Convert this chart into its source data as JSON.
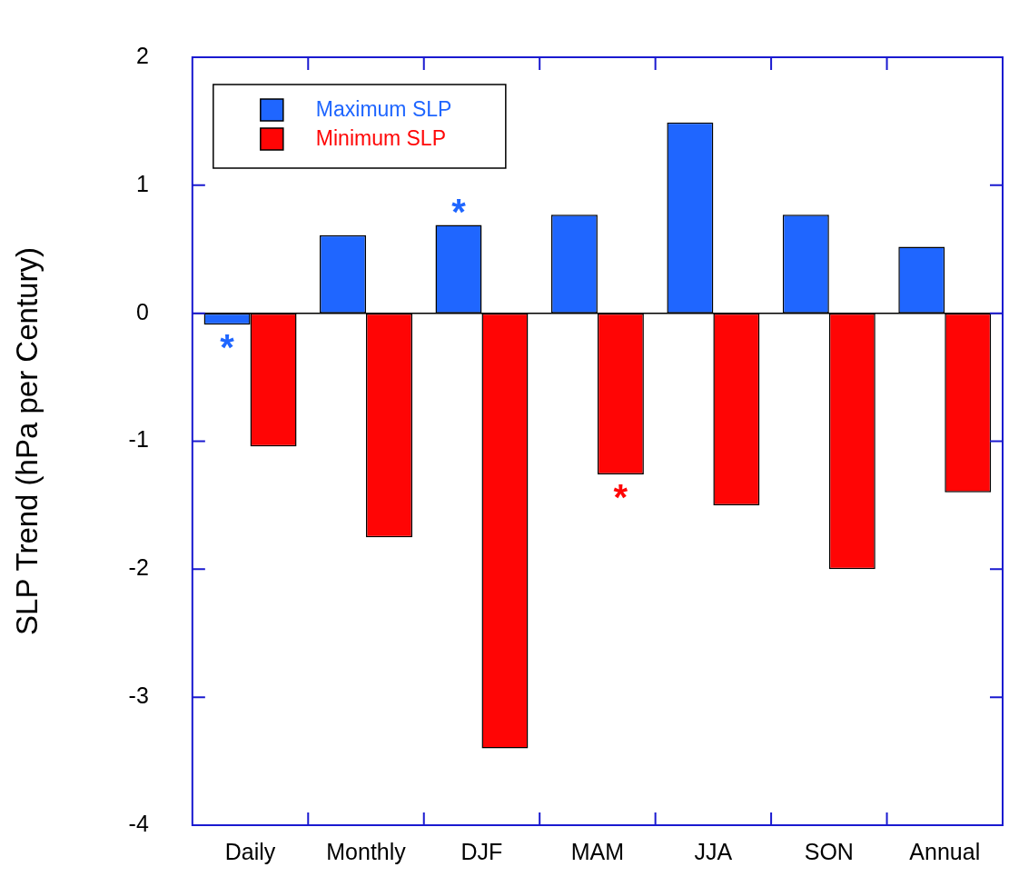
{
  "chart_data": {
    "type": "bar",
    "ylabel": "SLP Trend (hPa per Century)",
    "categories": [
      "Daily",
      "Monthly",
      "DJF",
      "MAM",
      "JJA",
      "SON",
      "Annual"
    ],
    "series": [
      {
        "name": "Maximum SLP",
        "color": "#1f66ff",
        "values": [
          -0.09,
          0.61,
          0.69,
          0.77,
          1.49,
          0.77,
          0.52
        ]
      },
      {
        "name": "Minimum SLP",
        "color": "#ff0505",
        "values": [
          -1.04,
          -1.75,
          -3.4,
          -1.26,
          -1.5,
          -2.0,
          -1.4
        ]
      }
    ],
    "ylim": [
      -4,
      2
    ],
    "yticks": [
      -4,
      -3,
      -2,
      -1,
      0,
      1,
      2
    ],
    "annotations": [
      {
        "text": "*",
        "x": "Daily",
        "y": -0.09
      },
      {
        "text": "*",
        "x": "DJF",
        "y": 0.69
      },
      {
        "text": "*",
        "x": "MAM",
        "y": -1.26
      }
    ],
    "legend": "top left"
  }
}
